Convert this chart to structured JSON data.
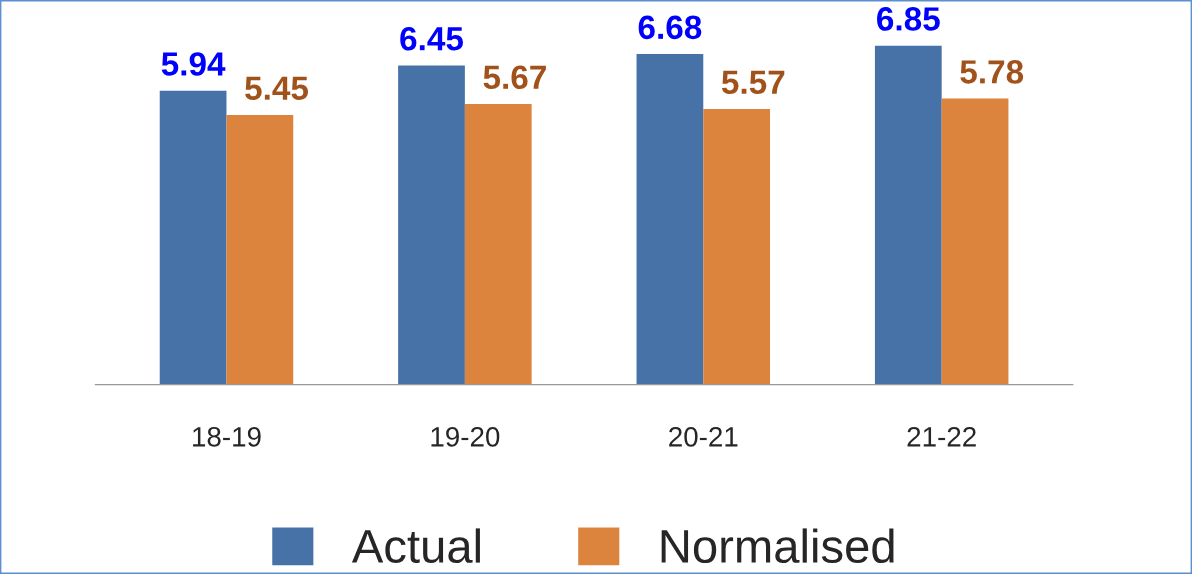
{
  "chart_data": {
    "type": "bar",
    "categories": [
      "18-19",
      "19-20",
      "20-21",
      "21-22"
    ],
    "series": [
      {
        "name": "Actual",
        "color": "#4672a8",
        "values": [
          5.94,
          6.45,
          6.68,
          6.85
        ]
      },
      {
        "name": "Normalised",
        "color": "#dc843e",
        "values": [
          5.45,
          5.67,
          5.57,
          5.78
        ]
      }
    ],
    "data_labels": true,
    "legend": "bottom",
    "grid": false
  }
}
